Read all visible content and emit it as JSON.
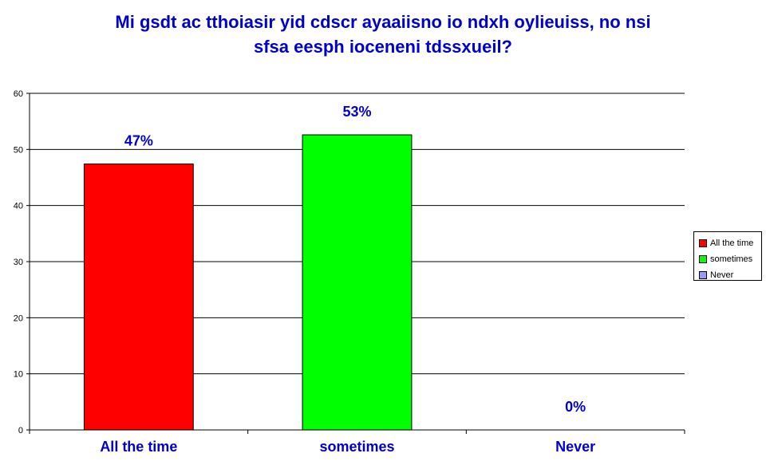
{
  "chart_data": {
    "type": "bar",
    "title_lines": [
      "Mi gsdt ac tthoiasir yid cdscr ayaaiisno io ndxh oylieuiss, no nsi",
      "sfsa eesph ioceneni tdssxueil?"
    ],
    "categories": [
      "All the time",
      "sometimes",
      "Never"
    ],
    "values": [
      47.4,
      52.6,
      0
    ],
    "data_labels": [
      "47%",
      "53%",
      "0%"
    ],
    "colors": [
      "#ff0000",
      "#00ff00",
      "#9999ff"
    ],
    "ylim": [
      0,
      60
    ],
    "yticks": [
      0,
      10,
      20,
      30,
      40,
      50,
      60
    ],
    "grid": true,
    "legend_position": "right",
    "legend": [
      "All the time",
      "sometimes",
      "Never"
    ],
    "xlabel": "",
    "ylabel": ""
  }
}
